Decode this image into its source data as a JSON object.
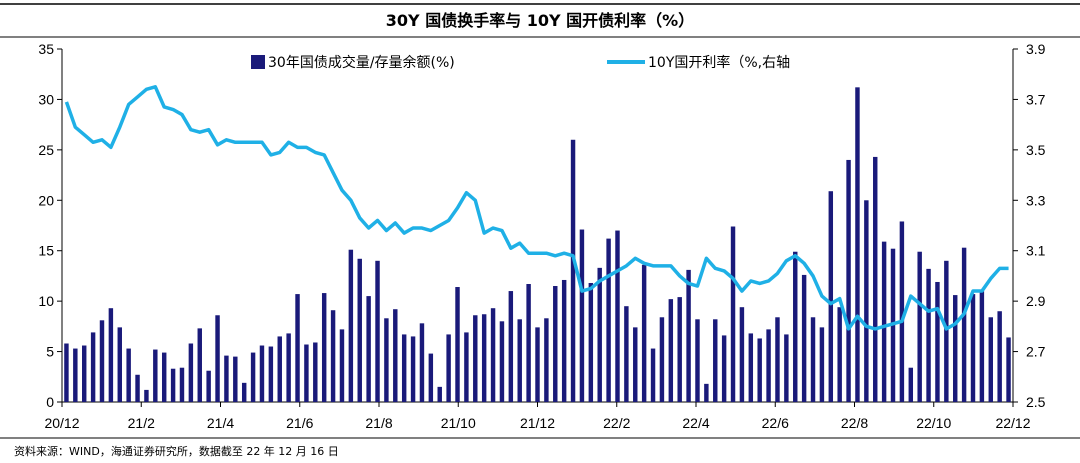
{
  "chart_data": {
    "type": "bar+line",
    "title": "30Y 国债换手率与 10Y 国开债利率（%）",
    "source": "资料来源：WIND，海通证券研究所，数据截至 22 年 12 月 16 日",
    "x_tick_labels": [
      "20/12",
      "21/2",
      "21/4",
      "21/6",
      "21/8",
      "21/10",
      "21/12",
      "22/2",
      "22/4",
      "22/6",
      "22/8",
      "22/10",
      "22/12"
    ],
    "y_left": {
      "min": 0,
      "max": 35,
      "ticks": [
        0,
        5,
        10,
        15,
        20,
        25,
        30,
        35
      ]
    },
    "y_right": {
      "min": 2.5,
      "max": 3.9,
      "ticks": [
        "2.5",
        "2.7",
        "2.9",
        "3.1",
        "3.3",
        "3.5",
        "3.7",
        "3.9"
      ]
    },
    "series": [
      {
        "name": "30年国债成交量/存量余额(%)",
        "type": "bar",
        "axis": "left",
        "color": "#1a1a7a",
        "values": [
          5.8,
          5.3,
          5.6,
          6.9,
          8.1,
          9.3,
          7.4,
          5.3,
          2.7,
          1.2,
          5.2,
          4.9,
          3.3,
          3.4,
          5.8,
          7.3,
          3.1,
          8.6,
          4.6,
          4.5,
          1.9,
          4.9,
          5.6,
          5.5,
          6.5,
          6.8,
          10.7,
          5.7,
          5.9,
          10.8,
          9.1,
          7.2,
          15.1,
          14.2,
          10.5,
          14.0,
          8.3,
          9.2,
          6.7,
          6.5,
          7.8,
          4.8,
          1.5,
          6.7,
          11.4,
          6.9,
          8.6,
          8.7,
          9.3,
          8.0,
          11.0,
          8.2,
          11.7,
          7.4,
          8.3,
          11.5,
          12.1,
          26.0,
          17.1,
          11.8,
          13.3,
          16.2,
          17.0,
          9.5,
          7.4,
          13.6,
          5.3,
          8.4,
          10.2,
          10.4,
          13.1,
          8.2,
          1.8,
          8.2,
          6.6,
          17.4,
          9.4,
          6.8,
          6.3,
          7.2,
          8.4,
          6.7,
          14.9,
          12.6,
          8.4,
          7.4,
          20.9,
          9.4,
          24.0,
          31.2,
          20.0,
          24.3,
          15.9,
          15.2,
          17.9,
          3.4,
          14.9,
          13.2,
          11.9,
          14.0,
          10.6,
          15.3,
          10.7,
          11.0,
          8.4,
          9.0,
          6.4
        ]
      },
      {
        "name": "10Y国开利率（%,右轴",
        "type": "line",
        "axis": "right",
        "color": "#1fb0e6",
        "values": [
          3.69,
          3.59,
          3.56,
          3.53,
          3.54,
          3.51,
          3.59,
          3.68,
          3.71,
          3.74,
          3.75,
          3.67,
          3.66,
          3.64,
          3.58,
          3.57,
          3.58,
          3.52,
          3.54,
          3.53,
          3.53,
          3.53,
          3.53,
          3.48,
          3.49,
          3.53,
          3.51,
          3.51,
          3.49,
          3.48,
          3.41,
          3.34,
          3.3,
          3.23,
          3.19,
          3.22,
          3.18,
          3.21,
          3.17,
          3.19,
          3.19,
          3.18,
          3.2,
          3.22,
          3.27,
          3.33,
          3.3,
          3.17,
          3.19,
          3.18,
          3.11,
          3.13,
          3.09,
          3.09,
          3.09,
          3.08,
          3.09,
          3.08,
          2.94,
          2.95,
          2.98,
          3.0,
          3.02,
          3.04,
          3.07,
          3.05,
          3.04,
          3.04,
          3.04,
          3.0,
          2.97,
          2.96,
          3.07,
          3.03,
          3.02,
          2.99,
          2.94,
          2.98,
          2.97,
          2.98,
          3.01,
          3.06,
          3.08,
          3.05,
          3.0,
          2.92,
          2.89,
          2.91,
          2.79,
          2.84,
          2.8,
          2.79,
          2.8,
          2.81,
          2.82,
          2.92,
          2.89,
          2.86,
          2.87,
          2.79,
          2.81,
          2.85,
          2.94,
          2.94,
          2.99,
          3.03,
          3.03
        ]
      }
    ]
  }
}
